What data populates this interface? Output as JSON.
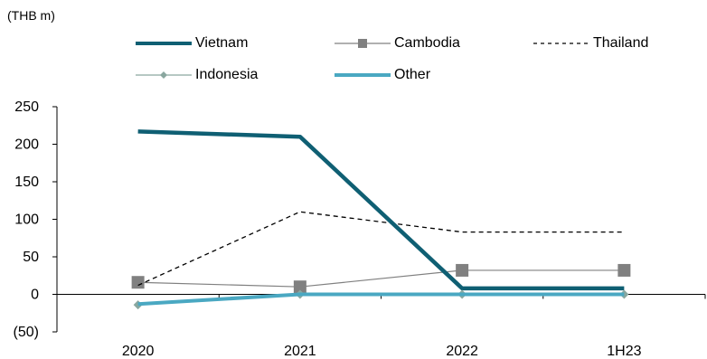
{
  "unit_label": "(THB m)",
  "chart_data": {
    "type": "line",
    "categories": [
      "2020",
      "2021",
      "2022",
      "1H23"
    ],
    "ylim": [
      -50,
      250
    ],
    "yticks": [
      250,
      200,
      150,
      100,
      50,
      0,
      -50
    ],
    "ytick_labels": [
      "250",
      "200",
      "150",
      "100",
      "50",
      "0",
      "(50)"
    ],
    "grid": false,
    "legend_position": "top",
    "series": [
      {
        "name": "Vietnam",
        "values": [
          217,
          210,
          8,
          8
        ],
        "color": "#0f5f73",
        "style": "thick"
      },
      {
        "name": "Cambodia",
        "values": [
          16,
          10,
          32,
          32
        ],
        "color": "#808080",
        "style": "square-marker"
      },
      {
        "name": "Thailand",
        "values": [
          12,
          110,
          83,
          83
        ],
        "color": "#000000",
        "style": "dashed"
      },
      {
        "name": "Indonesia",
        "values": [
          -14,
          0,
          0,
          0
        ],
        "color": "#8aa79f",
        "style": "diamond-marker"
      },
      {
        "name": "Other",
        "values": [
          -13,
          0,
          0,
          0
        ],
        "color": "#4aa8c2",
        "style": "thick-light"
      }
    ]
  }
}
